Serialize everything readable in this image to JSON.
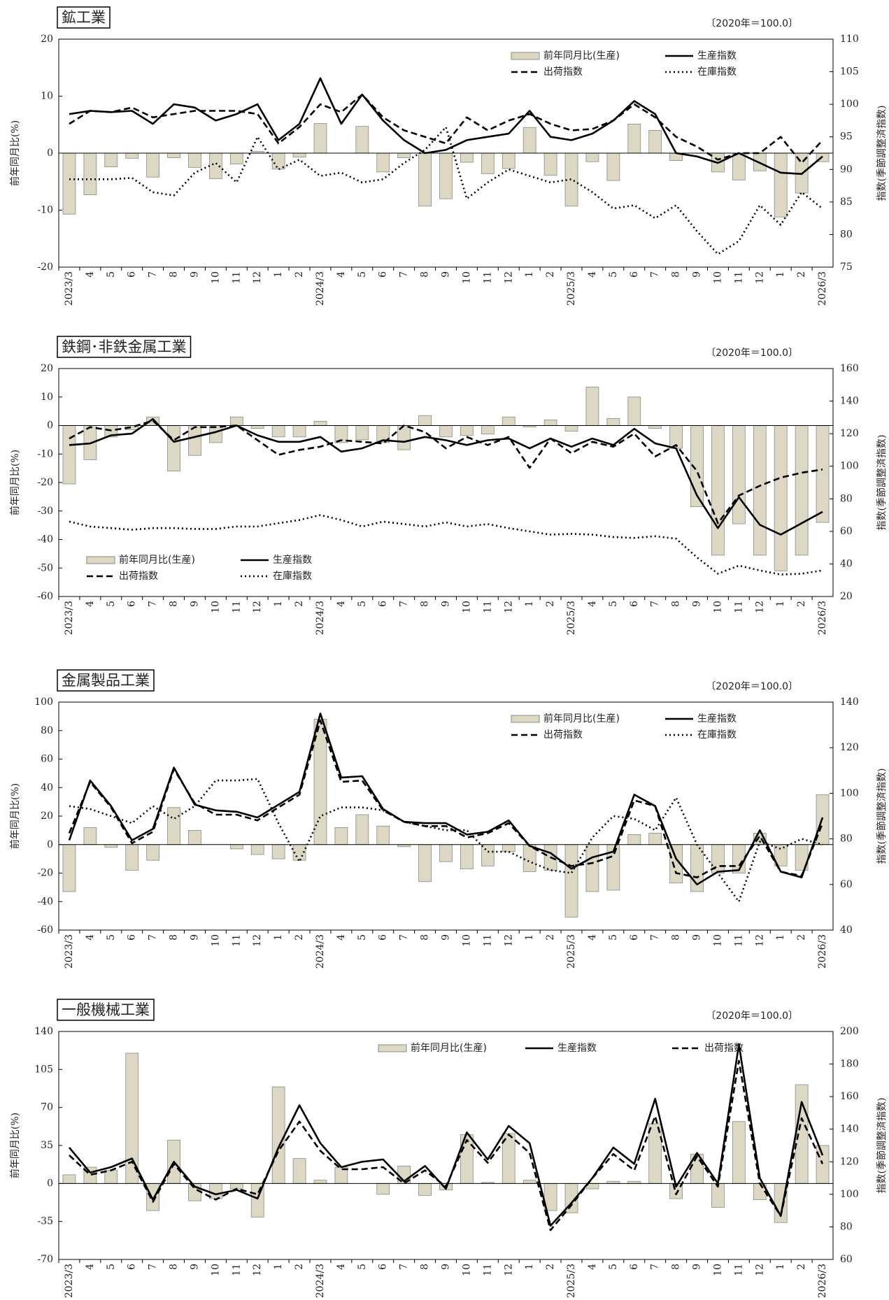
{
  "chart_data": [
    {
      "type": "bar-line",
      "title": "鉱工業",
      "note": "〔2020年＝100.0〕",
      "ylabel": "前年同月比(%)",
      "y2label": "指数(季節調整済指数)",
      "categories": [
        "2023/3",
        "4",
        "5",
        "6",
        "7",
        "8",
        "9",
        "10",
        "11",
        "12",
        "1",
        "2",
        "2024/3",
        "4",
        "5",
        "6",
        "7",
        "8",
        "9",
        "10",
        "11",
        "12",
        "1",
        "2",
        "2025/3",
        "4",
        "5",
        "6",
        "7",
        "8",
        "9",
        "10",
        "11",
        "12",
        "1",
        "2",
        "2026/3"
      ],
      "ylim": [
        -20,
        20
      ],
      "yticks": [
        -20,
        -10,
        0,
        10,
        20
      ],
      "y2lim": [
        75,
        110
      ],
      "y2ticks": [
        75,
        80,
        85,
        90,
        95,
        100,
        105,
        110
      ],
      "legend": "upper right",
      "series": [
        {
          "name": "前年同月比(生産)",
          "type": "bar",
          "color": "#ddd8c4",
          "values": [
            -10.7,
            -7.3,
            -2.4,
            -0.9,
            -4.2,
            -0.8,
            -2.5,
            -4.5,
            -1.9,
            0.3,
            -2.8,
            -0.7,
            5.2,
            0,
            4.7,
            -3.3,
            -0.8,
            -9.3,
            -8.0,
            -1.6,
            -3.6,
            -2.7,
            4.5,
            -3.9,
            -9.3,
            -1.5,
            -4.8,
            5.1,
            4.0,
            -1.3,
            0,
            -3.3,
            -4.7,
            -3.1,
            -11.2,
            -7.0,
            -1.5
          ]
        },
        {
          "name": "生産指数",
          "type": "line",
          "axis": "y2",
          "style": "solid",
          "color": "#000000",
          "values": [
            98.5,
            99,
            98.8,
            99,
            97,
            100,
            99.5,
            97.5,
            98.5,
            100,
            94.5,
            97,
            104,
            97,
            101.5,
            97.5,
            94.5,
            92.5,
            93,
            94.5,
            95,
            95.5,
            99,
            95,
            94.5,
            95.5,
            97.5,
            100.5,
            98.5,
            92.5,
            92,
            91,
            92.5,
            91,
            89.5,
            89.3,
            92
          ]
        },
        {
          "name": "出荷指数",
          "type": "line",
          "axis": "y2",
          "style": "dashed",
          "color": "#000000",
          "values": [
            97,
            99,
            98.8,
            99.5,
            98,
            98.5,
            99,
            99,
            99,
            98.5,
            94,
            96.5,
            100,
            98.8,
            101.5,
            98,
            96,
            95,
            94,
            98,
            96,
            97.5,
            98.5,
            97,
            96,
            96.2,
            97.5,
            100,
            98,
            95,
            93.5,
            91.5,
            92.5,
            92.5,
            95,
            91,
            94.5
          ]
        },
        {
          "name": "在庫指数",
          "type": "line",
          "axis": "y2",
          "style": "dotted",
          "color": "#000000",
          "values": [
            88.5,
            88.5,
            88.5,
            88.7,
            86.5,
            86,
            89.5,
            91,
            88,
            95,
            90,
            91.5,
            89,
            89.5,
            88,
            88.5,
            91,
            93,
            96.5,
            85.5,
            88,
            90,
            89,
            88,
            88.5,
            86.5,
            84,
            84.5,
            82.5,
            84.5,
            80.5,
            77,
            79,
            84.5,
            81.5,
            86.5,
            84
          ]
        }
      ]
    },
    {
      "type": "bar-line",
      "title": "鉄鋼･非鉄金属工業",
      "note": "〔2020年＝100.0〕",
      "ylabel": "前年同月比(%)",
      "y2label": "指数(季節調整済指数)",
      "categories": [
        "2023/3",
        "4",
        "5",
        "6",
        "7",
        "8",
        "9",
        "10",
        "11",
        "12",
        "1",
        "2",
        "2024/3",
        "4",
        "5",
        "6",
        "7",
        "8",
        "9",
        "10",
        "11",
        "12",
        "1",
        "2",
        "2025/3",
        "4",
        "5",
        "6",
        "7",
        "8",
        "9",
        "10",
        "11",
        "12",
        "1",
        "2",
        "2026/3"
      ],
      "ylim": [
        -60,
        20
      ],
      "yticks": [
        -60,
        -50,
        -40,
        -30,
        -20,
        -10,
        0,
        10,
        20
      ],
      "y2lim": [
        20,
        160
      ],
      "y2ticks": [
        20,
        40,
        60,
        80,
        100,
        120,
        140,
        160
      ],
      "legend": "lower left",
      "series": [
        {
          "name": "前年同月比(生産)",
          "type": "bar",
          "color": "#ddd8c4",
          "values": [
            -20.5,
            -12,
            -4,
            -1.5,
            3,
            -16,
            -10.5,
            -6,
            3,
            -1,
            -4,
            -4,
            1.5,
            -6,
            -5,
            -6,
            -8.5,
            3.5,
            -4,
            -3.5,
            -3,
            3,
            -0.5,
            2,
            -2,
            13.5,
            2.5,
            10,
            -1,
            -8,
            -28.5,
            -45.5,
            -34.5,
            -45.5,
            -51,
            -45.5,
            -34
          ]
        },
        {
          "name": "生産指数",
          "type": "line",
          "axis": "y2",
          "style": "solid",
          "color": "#000000",
          "values": [
            113,
            114,
            119,
            120,
            129,
            115,
            118,
            121,
            125,
            119,
            115,
            115,
            118,
            109,
            111,
            116,
            115,
            118,
            116,
            113,
            116,
            117,
            111,
            117,
            112,
            117,
            113,
            123,
            114,
            111,
            82,
            62,
            81,
            64,
            58,
            65,
            72
          ]
        },
        {
          "name": "出荷指数",
          "type": "line",
          "axis": "y2",
          "style": "dashed",
          "color": "#000000",
          "values": [
            117,
            124,
            122,
            124,
            128,
            116,
            124,
            124,
            125,
            116,
            107,
            110,
            112,
            116,
            115,
            114,
            125,
            121,
            111,
            118,
            113,
            118,
            99,
            117,
            108,
            115,
            112,
            120,
            106,
            113,
            97,
            65,
            82,
            88,
            93,
            96,
            98
          ]
        },
        {
          "name": "在庫指数",
          "type": "line",
          "axis": "y2",
          "style": "dotted",
          "color": "#000000",
          "values": [
            66,
            63,
            62,
            61,
            62,
            62,
            61.5,
            61.5,
            63,
            63,
            65,
            67,
            70,
            67,
            63,
            66,
            64.5,
            63,
            65.5,
            63,
            64.5,
            62,
            60,
            58,
            58.5,
            58,
            56.5,
            56,
            57,
            55.5,
            44,
            34,
            39,
            36,
            33.5,
            34,
            36
          ]
        }
      ]
    },
    {
      "type": "bar-line",
      "title": "金属製品工業",
      "note": "〔2020年＝100.0〕",
      "ylabel": "前年同月比(%)",
      "y2label": "指数(季節調整済指数)",
      "categories": [
        "2023/3",
        "4",
        "5",
        "6",
        "7",
        "8",
        "9",
        "10",
        "11",
        "12",
        "1",
        "2",
        "2024/3",
        "4",
        "5",
        "6",
        "7",
        "8",
        "9",
        "10",
        "11",
        "12",
        "1",
        "2",
        "2025/3",
        "4",
        "5",
        "6",
        "7",
        "8",
        "9",
        "10",
        "11",
        "12",
        "1",
        "2",
        "2026/3"
      ],
      "ylim": [
        -60,
        100
      ],
      "yticks": [
        -60,
        -40,
        -20,
        0,
        20,
        40,
        60,
        80,
        100
      ],
      "y2lim": [
        40,
        140
      ],
      "y2ticks": [
        40,
        60,
        80,
        100,
        120,
        140
      ],
      "legend": "upper right",
      "series": [
        {
          "name": "前年同月比(生産)",
          "type": "bar",
          "color": "#ddd8c4",
          "values": [
            -33,
            12,
            -2,
            -18,
            -11,
            26,
            10,
            0,
            -3,
            -7,
            -10,
            -11,
            88,
            12,
            21,
            13,
            -1.5,
            -26,
            -12,
            -17,
            -15,
            -5,
            -19,
            -18,
            -51,
            -33,
            -32,
            7,
            8,
            -27,
            -33,
            -20,
            -20,
            8,
            -15,
            -18,
            35
          ]
        },
        {
          "name": "生産指数",
          "type": "line",
          "axis": "y2",
          "style": "solid",
          "color": "#000000",
          "values": [
            79.4,
            105.6,
            94.4,
            79.4,
            84.4,
            111.3,
            95,
            92.5,
            91.9,
            89.4,
            95,
            100.6,
            135,
            106.9,
            107.5,
            93.1,
            87.5,
            86.9,
            86.9,
            81.9,
            83.1,
            88.1,
            76.9,
            73.8,
            66.9,
            71.9,
            74.4,
            99.4,
            94.4,
            71.3,
            60,
            65.6,
            66.3,
            83.8,
            65.6,
            63.1,
            89.4
          ]
        },
        {
          "name": "出荷指数",
          "type": "line",
          "axis": "y2",
          "style": "dashed",
          "color": "#000000",
          "values": [
            82.5,
            105,
            93.8,
            78.1,
            83.1,
            110.6,
            95.6,
            90.6,
            90.6,
            88.1,
            93.8,
            99.4,
            131.9,
            105,
            105.6,
            92.5,
            87.5,
            85.6,
            85.6,
            80.6,
            82.5,
            86.9,
            76.9,
            71.9,
            68.1,
            69.4,
            72.5,
            96.9,
            94.4,
            65,
            63.1,
            68.1,
            68.1,
            81.3,
            65.6,
            63.8,
            86.9
          ]
        },
        {
          "name": "在庫指数",
          "type": "line",
          "axis": "y2",
          "style": "dotted",
          "color": "#000000",
          "values": [
            94.4,
            93.1,
            90,
            86.9,
            94.4,
            88.8,
            94.4,
            105.6,
            105.6,
            106.3,
            86.9,
            70,
            90,
            93.8,
            93.8,
            92.5,
            87.5,
            85.6,
            83.8,
            83.8,
            74.4,
            74.4,
            70,
            66.3,
            65,
            80.6,
            90,
            88.8,
            83.8,
            98.1,
            77.5,
            65,
            52.5,
            78.8,
            75.6,
            80,
            77.5
          ]
        }
      ]
    },
    {
      "type": "bar-line",
      "title": "一般機械工業",
      "note": "〔2020年＝100.0〕",
      "ylabel": "前年同月比(%)",
      "y2label": "指数(季節調整済指数)",
      "categories": [
        "2023/3",
        "4",
        "5",
        "6",
        "7",
        "8",
        "9",
        "10",
        "11",
        "12",
        "1",
        "2",
        "2024/3",
        "4",
        "5",
        "6",
        "7",
        "8",
        "9",
        "10",
        "11",
        "12",
        "1",
        "2",
        "2025/3",
        "4",
        "5",
        "6",
        "7",
        "8",
        "9",
        "10",
        "11",
        "12",
        "1",
        "2",
        "2026/3"
      ],
      "ylim": [
        -70,
        140
      ],
      "yticks": [
        -70,
        -35,
        0,
        35,
        70,
        105,
        140
      ],
      "y2lim": [
        60,
        200
      ],
      "y2ticks": [
        60,
        80,
        100,
        120,
        140,
        160,
        180,
        200
      ],
      "legend": "upper right",
      "series": [
        {
          "name": "前年同月比(生産)",
          "type": "bar",
          "color": "#ddd8c4",
          "values": [
            8,
            15,
            12,
            120,
            -25,
            40,
            -16,
            -14,
            -5,
            -31,
            89,
            23,
            3,
            15,
            0,
            -10,
            16,
            -11,
            -6,
            45,
            1,
            46,
            3,
            -25,
            -27,
            -5,
            2,
            2,
            55,
            -14,
            27,
            -22,
            57,
            -15,
            -36,
            91,
            35
          ]
        },
        {
          "name": "生産指数",
          "type": "line",
          "axis": "y2",
          "style": "solid",
          "color": "#000000",
          "values": [
            128.7,
            113.4,
            116.7,
            122,
            96.7,
            120,
            104.7,
            100,
            102.7,
            97.4,
            128.7,
            154.7,
            131.4,
            116.7,
            120,
            121.4,
            108,
            117.4,
            103.4,
            138,
            121.4,
            142,
            131.4,
            80.7,
            94.7,
            110,
            128.7,
            118.7,
            158.7,
            104.7,
            125.4,
            106.7,
            192.1,
            110,
            86.7,
            156.7,
            124
          ]
        },
        {
          "name": "出荷指数",
          "type": "line",
          "axis": "y2",
          "style": "dashed",
          "color": "#000000",
          "values": [
            124,
            112,
            114.7,
            120,
            95.4,
            118.7,
            103.4,
            96.7,
            103.4,
            100,
            126.7,
            144.7,
            126.7,
            115.4,
            115.4,
            116.7,
            106.7,
            114.7,
            104.7,
            133.4,
            119.4,
            136.7,
            125.4,
            78,
            93.4,
            110,
            124.7,
            114.7,
            148,
            100,
            123.4,
            104.7,
            182,
            106.7,
            86.7,
            146.7,
            118.7
          ]
        }
      ]
    }
  ]
}
